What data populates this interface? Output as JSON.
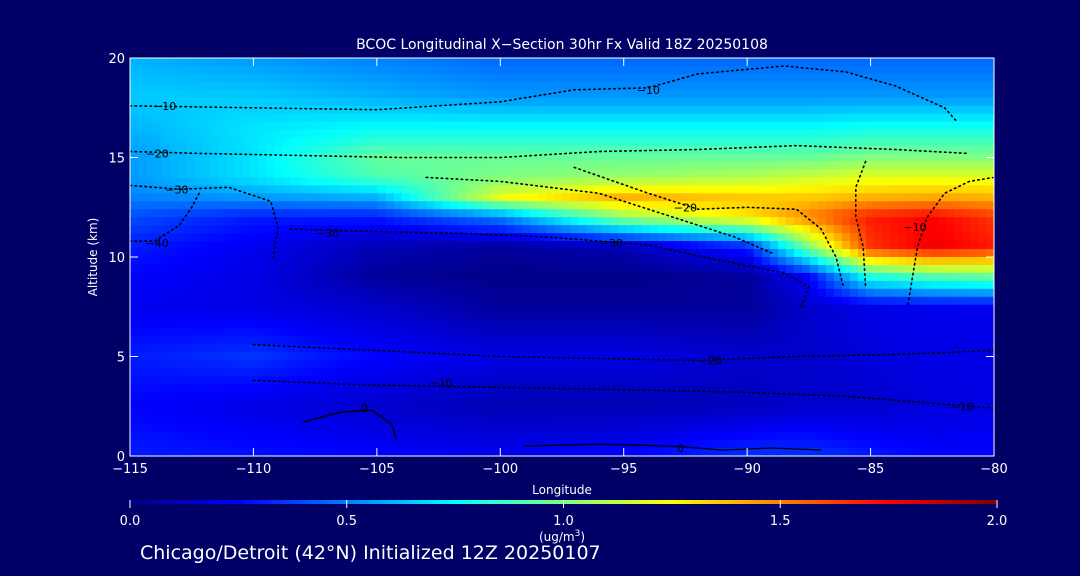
{
  "chart_data": {
    "type": "heatmap",
    "title": "BCOC Longitudinal X−Section 30hr  Fx Valid 18Z 20250108",
    "xlabel": "Longitude",
    "ylabel": "Altitude (km)",
    "xlim": [
      -115,
      -80
    ],
    "ylim": [
      0,
      20
    ],
    "x_ticks": [
      -115,
      -110,
      -105,
      -100,
      -95,
      -90,
      -85,
      -80
    ],
    "x_tick_labels": [
      "−115",
      "−110",
      "−105",
      "−100",
      "−95",
      "−90",
      "−85",
      "−80"
    ],
    "y_ticks": [
      0,
      5,
      10,
      15,
      20
    ],
    "y_tick_labels": [
      "0",
      "5",
      "10",
      "15",
      "20"
    ],
    "colorbar": {
      "min": 0.0,
      "max": 2.0,
      "ticks": [
        "0.0",
        "0.5",
        "1.0",
        "1.5",
        "2.0"
      ],
      "unit_label": "(ug/m",
      "unit_sup": "3",
      "unit_close": ")",
      "colors": [
        "#000080",
        "#0000ff",
        "#0080ff",
        "#00ffff",
        "#80ff80",
        "#ffff00",
        "#ff8000",
        "#ff0000",
        "#800000"
      ]
    },
    "concentration_field": {
      "lon": [
        -115,
        -110,
        -105,
        -100,
        -95,
        -90,
        -87.5,
        -85,
        -82.5,
        -80
      ],
      "alt": [
        0,
        2.5,
        5,
        7.5,
        9,
        10.5,
        12,
        13,
        14,
        15,
        16.5,
        18,
        20
      ],
      "values": [
        [
          0.3,
          0.28,
          0.25,
          0.22,
          0.25,
          0.35,
          0.35,
          0.3,
          0.25,
          0.25
        ],
        [
          0.25,
          0.2,
          0.15,
          0.1,
          0.1,
          0.12,
          0.15,
          0.15,
          0.18,
          0.2
        ],
        [
          0.3,
          0.35,
          0.25,
          0.2,
          0.2,
          0.15,
          0.15,
          0.18,
          0.2,
          0.2
        ],
        [
          0.22,
          0.2,
          0.15,
          0.05,
          0.05,
          0.05,
          0.15,
          0.2,
          0.22,
          0.22
        ],
        [
          0.25,
          0.2,
          0.05,
          0.02,
          0.02,
          0.05,
          0.25,
          0.8,
          0.9,
          0.95
        ],
        [
          0.3,
          0.22,
          0.1,
          0.05,
          0.1,
          0.3,
          1.0,
          1.65,
          1.78,
          1.7
        ],
        [
          0.4,
          0.3,
          0.3,
          0.5,
          1.05,
          1.3,
          1.5,
          1.7,
          1.75,
          1.65
        ],
        [
          0.5,
          0.55,
          0.6,
          1.2,
          1.4,
          1.35,
          1.35,
          1.4,
          1.42,
          1.4
        ],
        [
          0.55,
          0.7,
          0.9,
          1.0,
          1.05,
          1.1,
          1.15,
          1.2,
          1.2,
          1.2
        ],
        [
          0.55,
          0.7,
          0.95,
          0.95,
          0.95,
          0.95,
          0.95,
          1.0,
          1.0,
          1.0
        ],
        [
          0.6,
          0.7,
          0.75,
          0.75,
          0.75,
          0.75,
          0.75,
          0.78,
          0.78,
          0.78
        ],
        [
          0.65,
          0.65,
          0.6,
          0.55,
          0.55,
          0.55,
          0.55,
          0.55,
          0.55,
          0.55
        ],
        [
          0.6,
          0.55,
          0.5,
          0.45,
          0.45,
          0.45,
          0.45,
          0.45,
          0.45,
          0.45
        ]
      ]
    },
    "contour_labels": [
      {
        "text": "−10",
        "lon": -113.6,
        "alt": 17.6
      },
      {
        "text": "−20",
        "lon": -113.9,
        "alt": 15.2
      },
      {
        "text": "−30",
        "lon": -113.1,
        "alt": 13.4
      },
      {
        "text": "−40",
        "lon": -113.9,
        "alt": 10.7
      },
      {
        "text": "−30",
        "lon": -107.0,
        "alt": 11.2
      },
      {
        "text": "−30",
        "lon": -95.5,
        "alt": 10.7
      },
      {
        "text": "−20",
        "lon": -92.5,
        "alt": 12.5
      },
      {
        "text": "−10",
        "lon": -94.0,
        "alt": 18.4
      },
      {
        "text": "−10",
        "lon": -83.2,
        "alt": 11.5
      },
      {
        "text": "−20",
        "lon": -91.5,
        "alt": 4.8
      },
      {
        "text": "−10",
        "lon": -102.4,
        "alt": 3.7
      },
      {
        "text": "0",
        "lon": -105.5,
        "alt": 2.4
      },
      {
        "text": "−10",
        "lon": -81.3,
        "alt": 2.5
      },
      {
        "text": "0",
        "lon": -92.7,
        "alt": 0.4
      }
    ],
    "contours": [
      {
        "value": "-10",
        "style": "dotted",
        "points": [
          [
            -115,
            17.6
          ],
          [
            -110,
            17.5
          ],
          [
            -105,
            17.4
          ],
          [
            -100,
            17.8
          ],
          [
            -97,
            18.4
          ],
          [
            -94,
            18.5
          ],
          [
            -92,
            19.2
          ],
          [
            -88.5,
            19.6
          ],
          [
            -86,
            19.3
          ],
          [
            -84,
            18.6
          ],
          [
            -82,
            17.5
          ],
          [
            -81.5,
            16.8
          ]
        ]
      },
      {
        "value": "-10",
        "style": "dotted",
        "points": [
          [
            -80,
            14.0
          ],
          [
            -81,
            13.8
          ],
          [
            -82,
            13.2
          ],
          [
            -82.7,
            12.0
          ],
          [
            -83.1,
            10.5
          ],
          [
            -83.3,
            9.0
          ],
          [
            -83.5,
            7.5
          ]
        ]
      },
      {
        "value": "-20",
        "style": "dotted",
        "points": [
          [
            -115,
            15.3
          ],
          [
            -112,
            15.2
          ],
          [
            -108,
            15.1
          ],
          [
            -104,
            15.0
          ],
          [
            -100,
            15.0
          ],
          [
            -96,
            15.3
          ],
          [
            -92,
            15.4
          ],
          [
            -88,
            15.6
          ],
          [
            -84,
            15.4
          ],
          [
            -81,
            15.2
          ]
        ]
      },
      {
        "value": "-20",
        "style": "dotted",
        "points": [
          [
            -97,
            14.5
          ],
          [
            -94,
            13.2
          ],
          [
            -92,
            12.4
          ],
          [
            -90,
            12.5
          ],
          [
            -88,
            12.4
          ],
          [
            -87,
            11.4
          ],
          [
            -86.4,
            10.0
          ],
          [
            -86.1,
            8.5
          ]
        ]
      },
      {
        "value": "-20",
        "style": "dotted",
        "points": [
          [
            -85.2,
            14.8
          ],
          [
            -85.6,
            13.5
          ],
          [
            -85.6,
            12.0
          ],
          [
            -85.3,
            10.5
          ],
          [
            -85.2,
            8.5
          ]
        ]
      },
      {
        "value": "-30",
        "style": "dotted",
        "points": [
          [
            -115,
            13.6
          ],
          [
            -113,
            13.4
          ],
          [
            -111,
            13.5
          ],
          [
            -109.3,
            12.8
          ],
          [
            -109,
            11.5
          ],
          [
            -109.2,
            10.0
          ]
        ]
      },
      {
        "value": "-30",
        "style": "dotted",
        "points": [
          [
            -108.5,
            11.4
          ],
          [
            -106,
            11.3
          ],
          [
            -102,
            11.2
          ],
          [
            -98,
            11.0
          ],
          [
            -94,
            10.6
          ],
          [
            -91,
            9.8
          ],
          [
            -88.5,
            9.2
          ],
          [
            -87.5,
            8.5
          ],
          [
            -87.8,
            7.5
          ]
        ]
      },
      {
        "value": "-30",
        "style": "dotted",
        "points": [
          [
            -103,
            14.0
          ],
          [
            -100,
            13.8
          ],
          [
            -96,
            13.2
          ],
          [
            -93,
            12.0
          ],
          [
            -90.5,
            11.0
          ],
          [
            -89,
            10.2
          ]
        ]
      },
      {
        "value": "-40",
        "style": "dotted",
        "points": [
          [
            -115,
            10.8
          ],
          [
            -114,
            10.8
          ],
          [
            -113,
            11.6
          ],
          [
            -112.5,
            12.5
          ],
          [
            -112.2,
            13.2
          ]
        ]
      },
      {
        "value": "-20",
        "style": "dotted",
        "points": [
          [
            -110,
            5.6
          ],
          [
            -105,
            5.3
          ],
          [
            -100,
            5.0
          ],
          [
            -96,
            4.9
          ],
          [
            -92,
            4.8
          ],
          [
            -88,
            5.0
          ],
          [
            -84,
            5.1
          ],
          [
            -80,
            5.3
          ]
        ]
      },
      {
        "value": "-10",
        "style": "dotted",
        "points": [
          [
            -110,
            3.8
          ],
          [
            -106,
            3.6
          ],
          [
            -102.4,
            3.5
          ],
          [
            -98,
            3.4
          ],
          [
            -94,
            3.3
          ],
          [
            -90,
            3.2
          ],
          [
            -86,
            3.0
          ],
          [
            -82,
            2.6
          ],
          [
            -80,
            2.4
          ]
        ]
      },
      {
        "value": "0",
        "style": "solid",
        "points": [
          [
            -108,
            1.7
          ],
          [
            -106.5,
            2.2
          ],
          [
            -105.2,
            2.3
          ],
          [
            -104.4,
            1.6
          ],
          [
            -104.2,
            0.8
          ]
        ]
      },
      {
        "value": "0",
        "style": "solid",
        "points": [
          [
            -99,
            0.5
          ],
          [
            -96,
            0.6
          ],
          [
            -93,
            0.5
          ],
          [
            -91,
            0.3
          ],
          [
            -89,
            0.4
          ],
          [
            -87,
            0.3
          ]
        ]
      }
    ]
  },
  "footer": "Chicago/Detroit (42°N) Initialized 12Z 20250107"
}
